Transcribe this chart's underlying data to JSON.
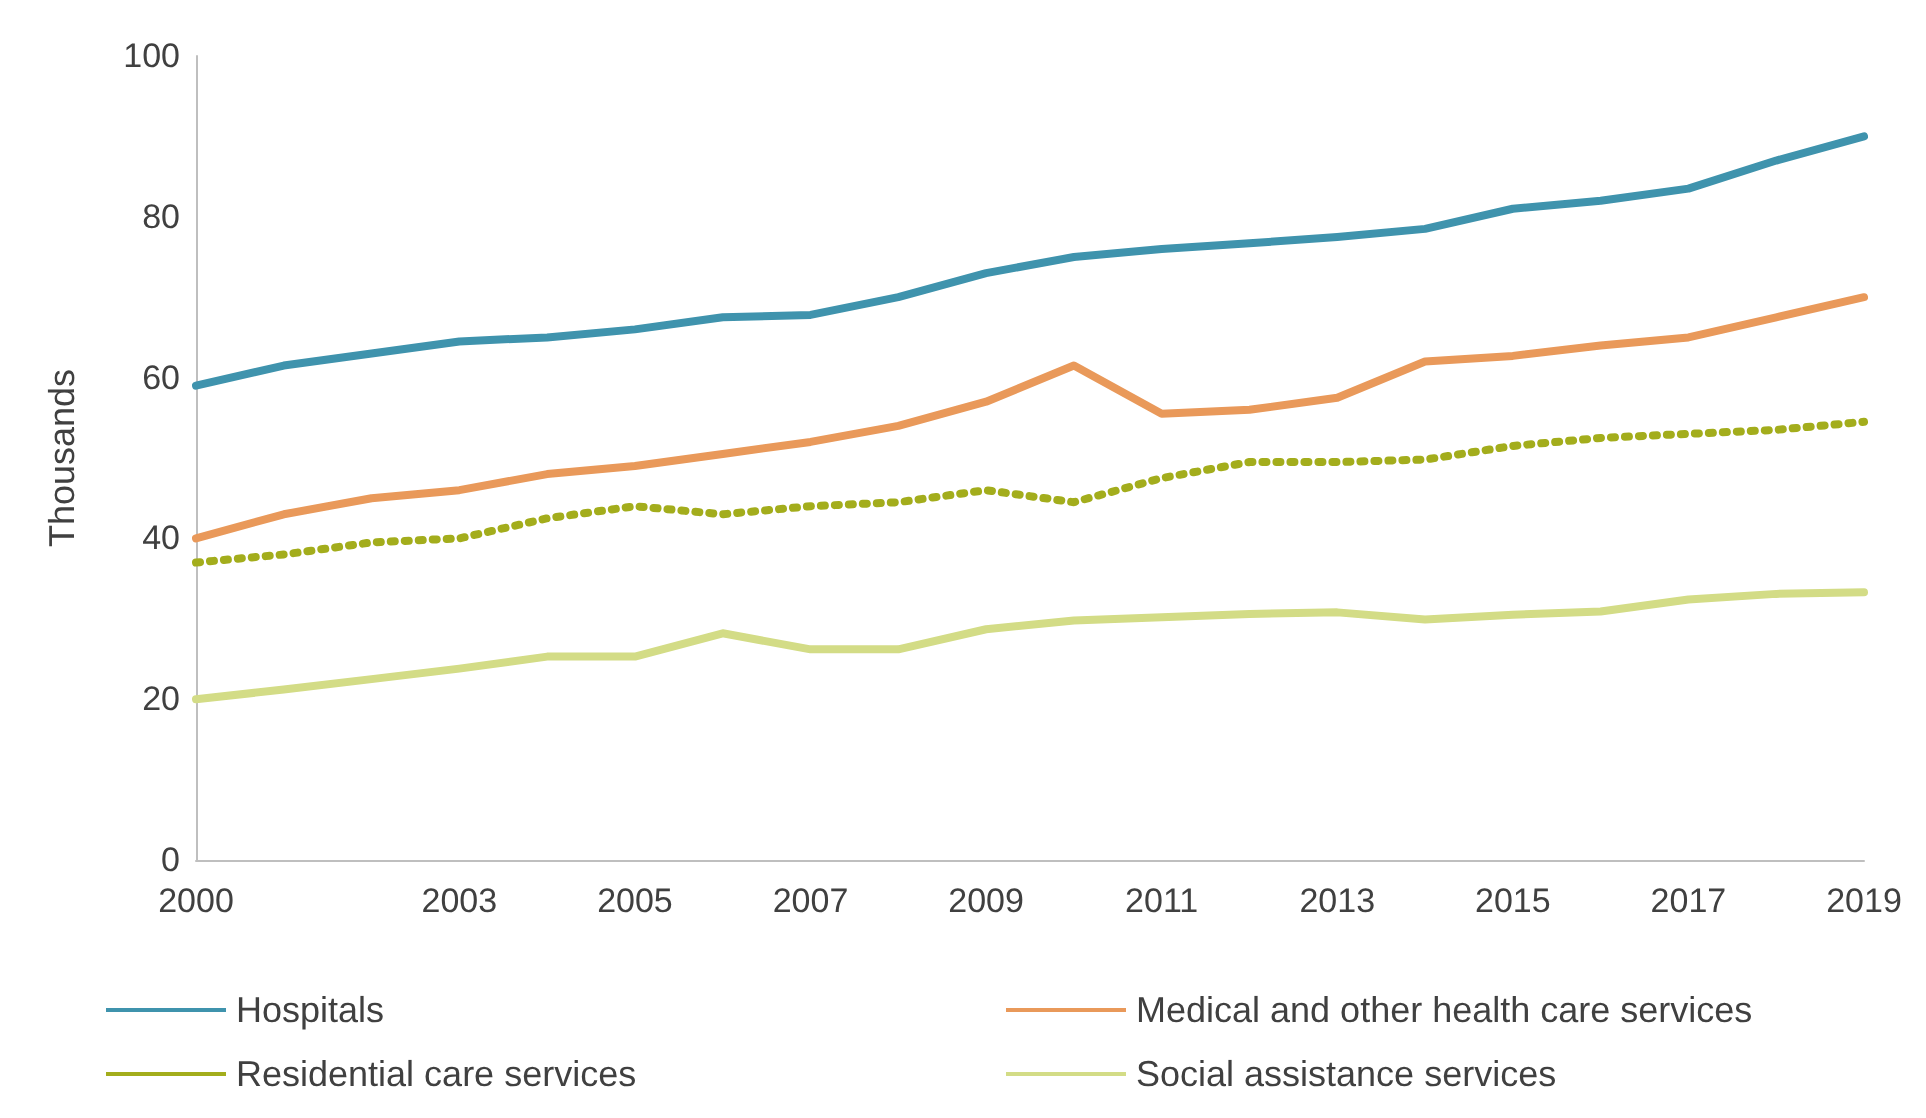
{
  "chart_data": {
    "type": "line",
    "ylabel": "Thousands",
    "x": [
      2000,
      2001,
      2002,
      2003,
      2004,
      2005,
      2006,
      2007,
      2008,
      2009,
      2010,
      2011,
      2012,
      2013,
      2014,
      2015,
      2016,
      2017,
      2018,
      2019
    ],
    "xlim": [
      2000,
      2019
    ],
    "xticks": [
      2000,
      2003,
      2005,
      2007,
      2009,
      2011,
      2013,
      2015,
      2017,
      2019
    ],
    "ylim": [
      0,
      100
    ],
    "yticks": [
      0,
      20,
      40,
      60,
      80,
      100
    ],
    "grid": false,
    "legend": "bottom",
    "marker": "none",
    "series": [
      {
        "name": "Hospitals",
        "color": "#3f93ad",
        "line_style": "solid",
        "values": [
          59,
          61.5,
          63,
          64.5,
          65,
          66,
          67.5,
          67.8,
          70,
          73,
          75,
          76,
          76.7,
          77.5,
          78.5,
          81,
          82,
          83.5,
          87,
          90
        ]
      },
      {
        "name": "Medical and other health care services",
        "color": "#e9995a",
        "line_style": "solid",
        "values": [
          40,
          43,
          45,
          46,
          48,
          49,
          50.5,
          52,
          54,
          57,
          61.5,
          55.5,
          56,
          57.5,
          62,
          62.7,
          64,
          65,
          67.5,
          70
        ]
      },
      {
        "name": "Residential care services",
        "color": "#a3ad1c",
        "line_style": "dotted",
        "values": [
          37,
          38,
          39.5,
          40,
          42.5,
          44,
          43,
          44,
          44.5,
          46,
          44.5,
          47.5,
          49.5,
          49.5,
          49.8,
          51.5,
          52.5,
          53,
          53.5,
          54.5
        ]
      },
      {
        "name": "Social assistance services",
        "color": "#d3dc86",
        "line_style": "solid",
        "values": [
          20,
          21.2,
          22.5,
          23.8,
          25.3,
          25.3,
          28.2,
          26.2,
          26.2,
          28.7,
          29.8,
          30.2,
          30.6,
          30.8,
          29.9,
          30.5,
          30.9,
          32.4,
          33.1,
          33.3
        ]
      }
    ]
  }
}
